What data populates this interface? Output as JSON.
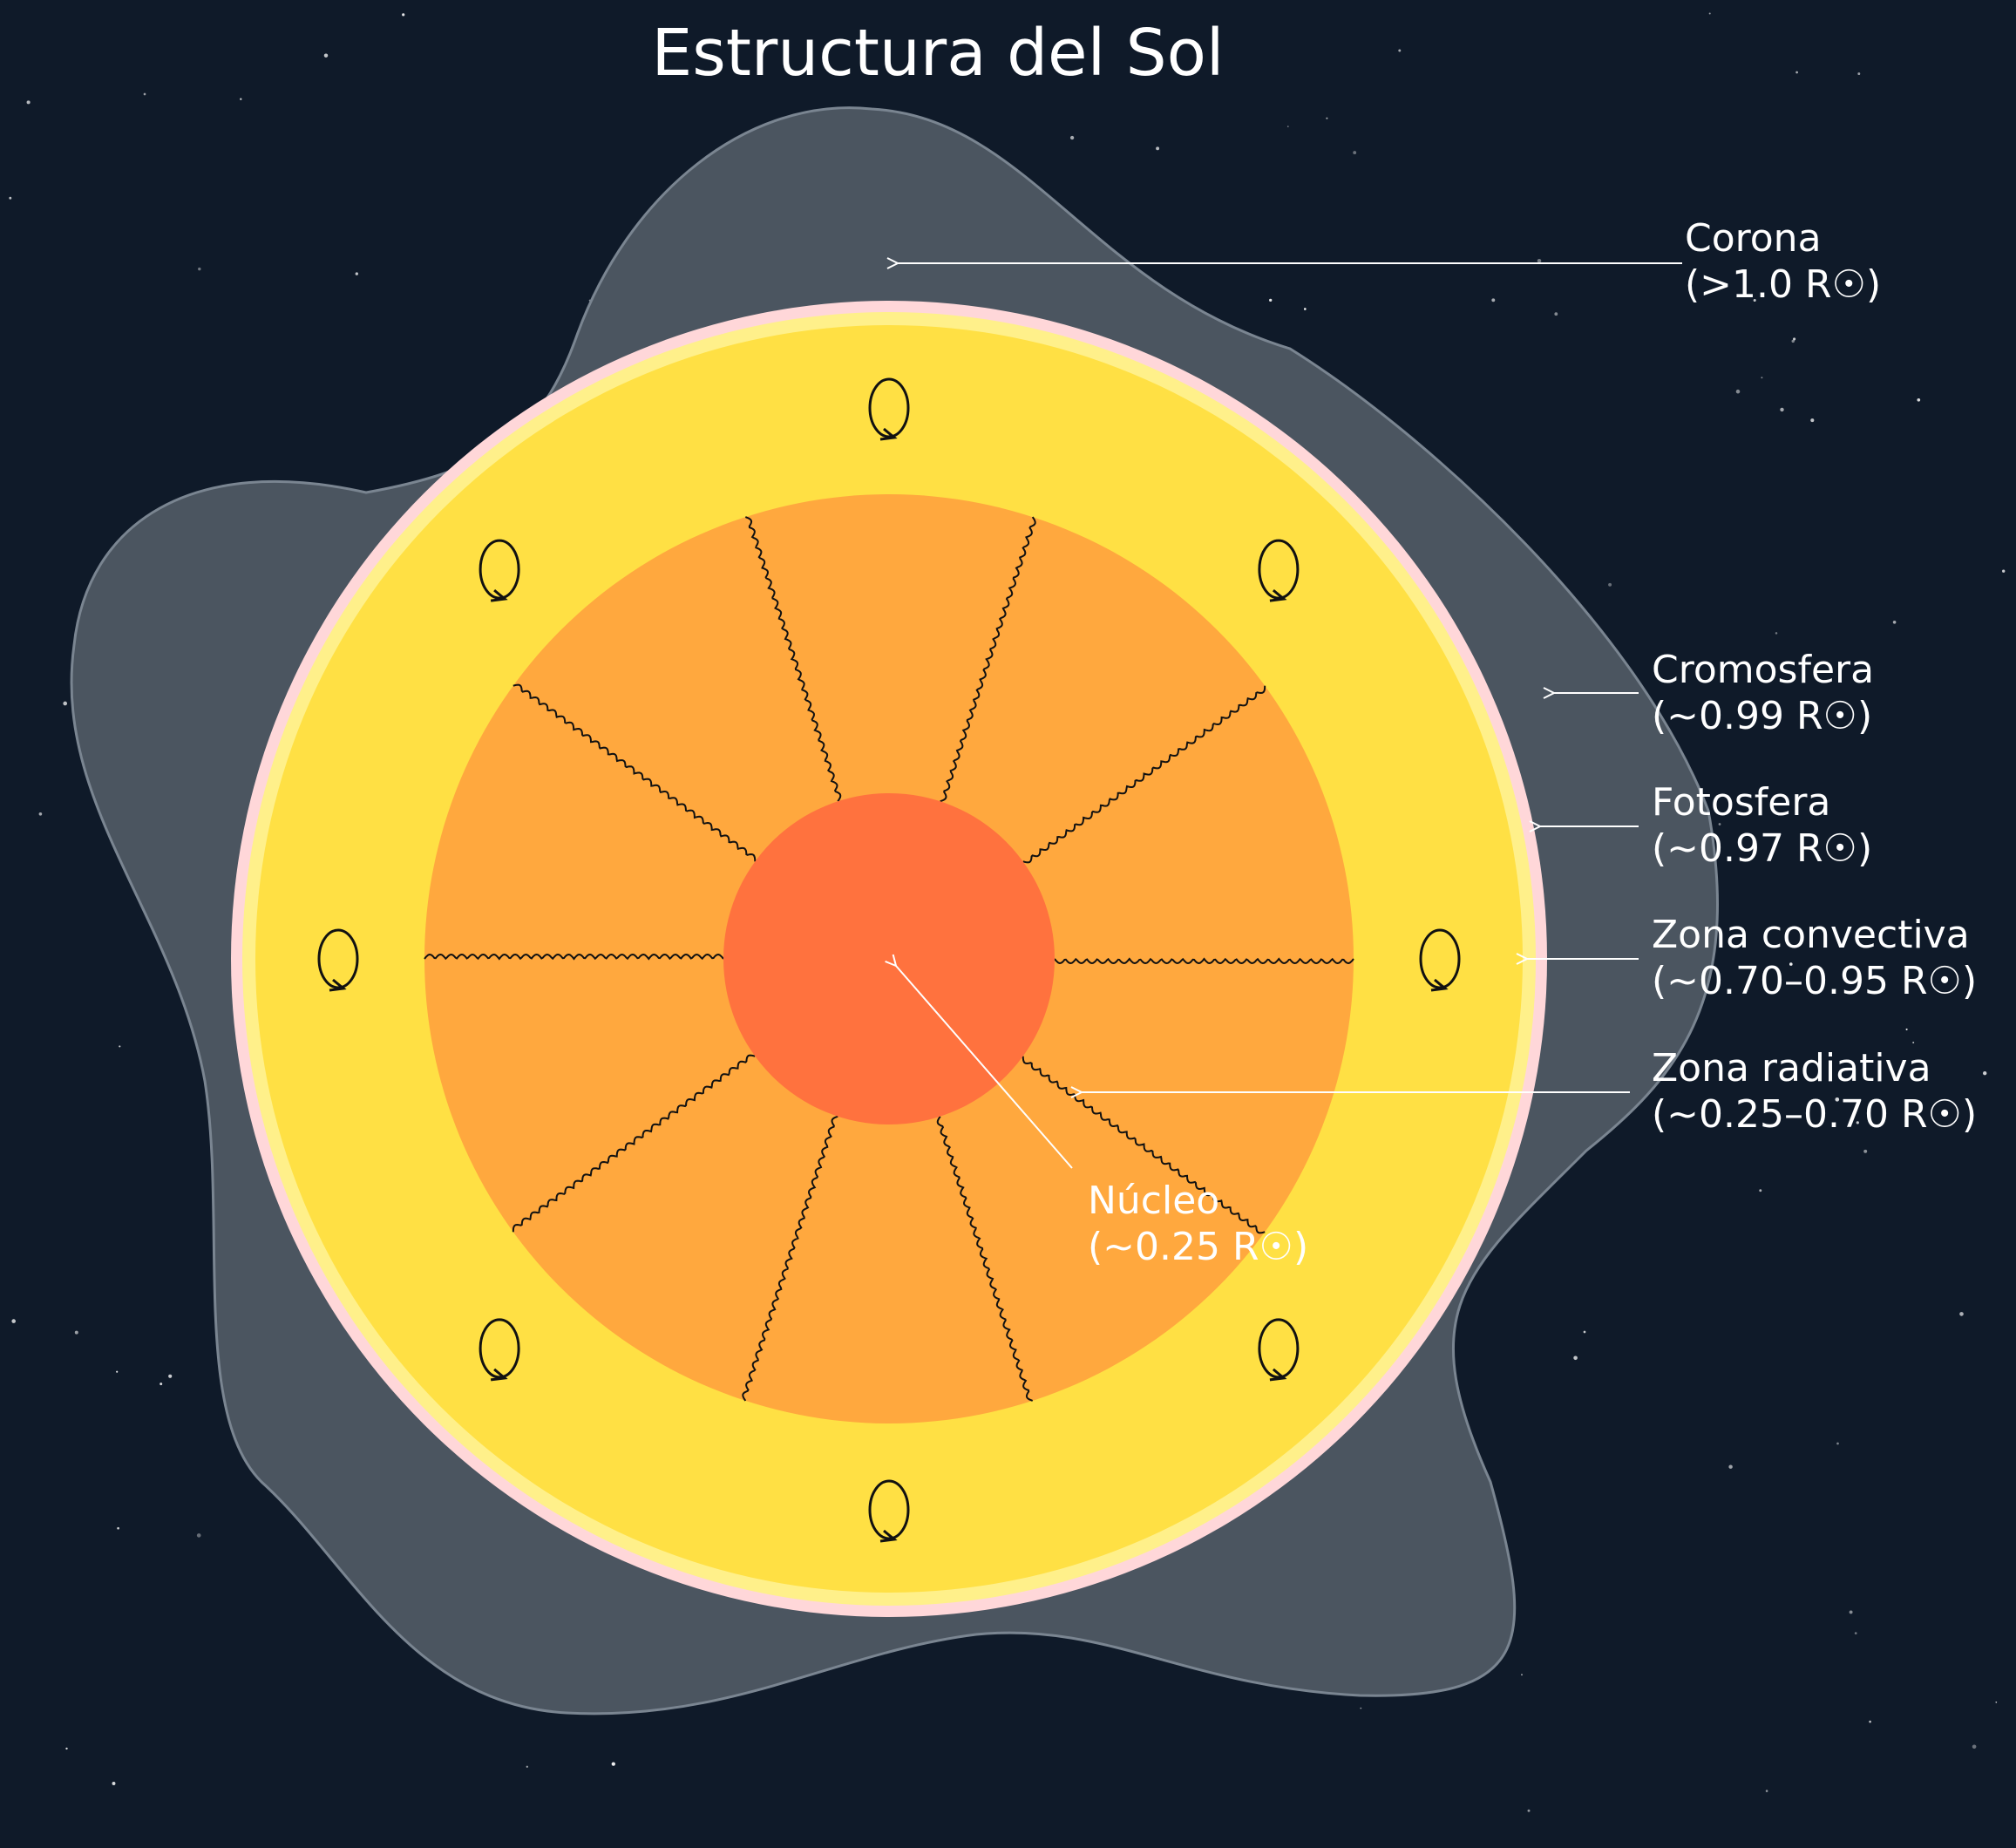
{
  "title": "Estructura del Sol",
  "colors": {
    "background": "#0f1a29",
    "corona": "#4b5560",
    "chromosphere": "#ffd7d9",
    "photosphere": "#fff08a",
    "convective_zone": "#ffe044",
    "radiative_zone": "#ffa83e",
    "core": "#ff723e"
  },
  "layers": [
    {
      "id": "corona",
      "name": "Corona",
      "range": "(>1.0 R☉)"
    },
    {
      "id": "chromosphere",
      "name": "Cromosfera",
      "range": "(~0.99 R☉)"
    },
    {
      "id": "photosphere",
      "name": "Fotosfera",
      "range": "(~0.97 R☉)"
    },
    {
      "id": "convective",
      "name": "Zona convectiva",
      "range": "(~0.70–0.95 R☉)"
    },
    {
      "id": "radiative",
      "name": "Zona radiativa",
      "range": "(~0.25–0.70 R☉)"
    },
    {
      "id": "core",
      "name": "Núcleo",
      "range": "(~0.25 R☉)"
    }
  ],
  "icons": {
    "convection_cell": "convection-loop-icon",
    "radiation_path": "photon-squiggle-icon"
  }
}
